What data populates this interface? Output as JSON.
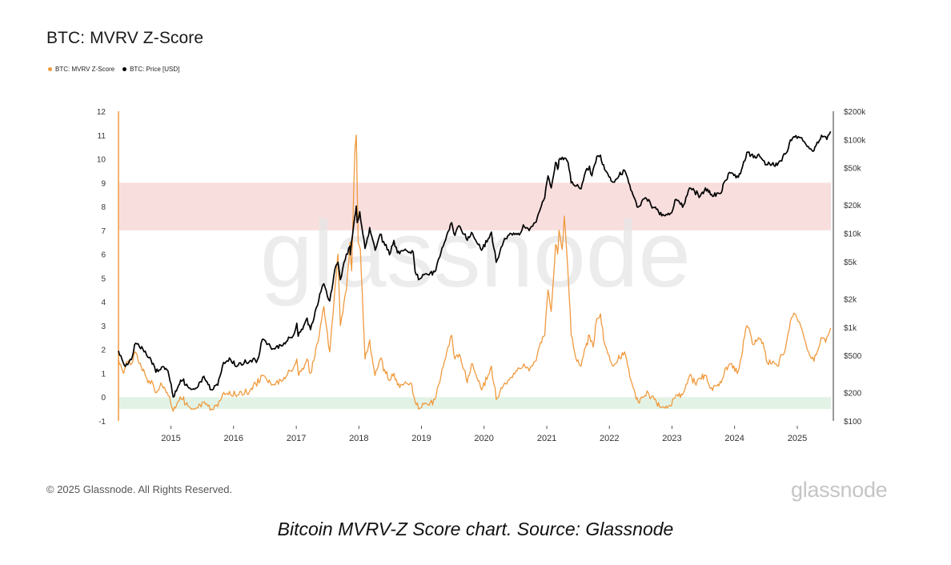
{
  "title": "BTC: MVRV Z-Score",
  "legend": [
    {
      "label": "BTC: MVRV Z-Score",
      "color": "#f09a3e"
    },
    {
      "label": "BTC: Price [USD]",
      "color": "#000000"
    }
  ],
  "watermark": "glassnode",
  "footer": {
    "copyright": "© 2025 Glassnode. All Rights Reserved.",
    "logo": "glassnode"
  },
  "caption": "Bitcoin MVRV-Z Score chart. Source: Glassnode",
  "chart_data": {
    "type": "line",
    "x_ticks": [
      "2015",
      "2016",
      "2017",
      "2018",
      "2019",
      "2020",
      "2021",
      "2022",
      "2023",
      "2024",
      "2025"
    ],
    "left_axis": {
      "ticks": [
        12,
        11,
        10,
        9,
        8,
        7,
        6,
        5,
        4,
        3,
        2,
        1,
        0,
        -1
      ],
      "ylim": [
        -1,
        12
      ]
    },
    "right_axis": {
      "scale": "log",
      "ylim": [
        100,
        200000
      ],
      "ticks": [
        {
          "value": 200000,
          "label": "$200k"
        },
        {
          "value": 100000,
          "label": "$100k"
        },
        {
          "value": 50000,
          "label": "$50k"
        },
        {
          "value": 20000,
          "label": "$20k"
        },
        {
          "value": 10000,
          "label": "$10k"
        },
        {
          "value": 5000,
          "label": "$5k"
        },
        {
          "value": 2000,
          "label": "$2k"
        },
        {
          "value": 1000,
          "label": "$1k"
        },
        {
          "value": 500,
          "label": "$500"
        },
        {
          "value": 200,
          "label": "$200"
        },
        {
          "value": 100,
          "label": "$100"
        }
      ]
    },
    "bands": [
      {
        "from": 7,
        "to": 9,
        "color": "#f9dede"
      },
      {
        "from": -0.5,
        "to": 0,
        "color": "#e2f3e6"
      }
    ],
    "grid": false,
    "legend_position": "top-left",
    "series": [
      {
        "name": "BTC: MVRV Z-Score",
        "axis": "left",
        "color": "#f09a3e",
        "points": [
          [
            "2014-03-01",
            1.6
          ],
          [
            "2014-04-01",
            1.0
          ],
          [
            "2014-04-20",
            1.5
          ],
          [
            "2014-05-15",
            1.4
          ],
          [
            "2014-06-05",
            1.9
          ],
          [
            "2014-07-01",
            1.4
          ],
          [
            "2014-08-01",
            1.0
          ],
          [
            "2014-08-20",
            0.6
          ],
          [
            "2014-09-10",
            0.7
          ],
          [
            "2014-10-01",
            0.2
          ],
          [
            "2014-11-10",
            0.5
          ],
          [
            "2014-12-10",
            0.2
          ],
          [
            "2015-01-14",
            -0.6
          ],
          [
            "2015-02-10",
            -0.2
          ],
          [
            "2015-03-10",
            -0.1
          ],
          [
            "2015-04-15",
            -0.4
          ],
          [
            "2015-06-01",
            -0.45
          ],
          [
            "2015-07-15",
            -0.2
          ],
          [
            "2015-08-25",
            -0.5
          ],
          [
            "2015-10-01",
            -0.4
          ],
          [
            "2015-11-05",
            0.2
          ],
          [
            "2015-12-15",
            0.1
          ],
          [
            "2016-02-01",
            0.1
          ],
          [
            "2016-04-01",
            0.2
          ],
          [
            "2016-06-17",
            0.9
          ],
          [
            "2016-07-15",
            0.7
          ],
          [
            "2016-08-10",
            0.5
          ],
          [
            "2016-10-15",
            0.7
          ],
          [
            "2016-12-20",
            1.3
          ],
          [
            "2017-01-04",
            1.6
          ],
          [
            "2017-01-15",
            0.9
          ],
          [
            "2017-03-05",
            1.6
          ],
          [
            "2017-03-25",
            1.0
          ],
          [
            "2017-05-15",
            2.6
          ],
          [
            "2017-06-11",
            3.8
          ],
          [
            "2017-07-15",
            1.9
          ],
          [
            "2017-08-15",
            4.6
          ],
          [
            "2017-09-01",
            6.0
          ],
          [
            "2017-09-15",
            3.0
          ],
          [
            "2017-10-20",
            4.5
          ],
          [
            "2017-11-10",
            6.5
          ],
          [
            "2017-11-20",
            5.3
          ],
          [
            "2017-12-08",
            10.2
          ],
          [
            "2017-12-17",
            11.0
          ],
          [
            "2017-12-28",
            6.5
          ],
          [
            "2018-01-10",
            6.2
          ],
          [
            "2018-01-20",
            4.5
          ],
          [
            "2018-02-06",
            1.6
          ],
          [
            "2018-03-05",
            2.4
          ],
          [
            "2018-04-05",
            0.9
          ],
          [
            "2018-05-05",
            1.6
          ],
          [
            "2018-06-25",
            0.7
          ],
          [
            "2018-07-25",
            1.0
          ],
          [
            "2018-08-15",
            0.5
          ],
          [
            "2018-09-15",
            0.5
          ],
          [
            "2018-11-01",
            0.6
          ],
          [
            "2018-11-25",
            -0.2
          ],
          [
            "2018-12-15",
            -0.5
          ],
          [
            "2019-01-15",
            -0.3
          ],
          [
            "2019-02-15",
            -0.35
          ],
          [
            "2019-03-20",
            -0.1
          ],
          [
            "2019-04-10",
            0.5
          ],
          [
            "2019-05-15",
            1.5
          ],
          [
            "2019-06-26",
            2.6
          ],
          [
            "2019-07-15",
            1.6
          ],
          [
            "2019-08-10",
            1.8
          ],
          [
            "2019-09-25",
            0.6
          ],
          [
            "2019-10-26",
            1.4
          ],
          [
            "2019-12-17",
            0.3
          ],
          [
            "2020-02-13",
            1.3
          ],
          [
            "2020-03-12",
            -0.1
          ],
          [
            "2020-04-30",
            0.6
          ],
          [
            "2020-06-01",
            0.8
          ],
          [
            "2020-07-25",
            1.2
          ],
          [
            "2020-08-20",
            1.4
          ],
          [
            "2020-09-20",
            1.1
          ],
          [
            "2020-10-25",
            1.5
          ],
          [
            "2020-11-25",
            2.3
          ],
          [
            "2020-12-20",
            2.6
          ],
          [
            "2021-01-08",
            4.5
          ],
          [
            "2021-01-27",
            3.6
          ],
          [
            "2021-02-21",
            6.4
          ],
          [
            "2021-03-05",
            6.0
          ],
          [
            "2021-03-13",
            7.0
          ],
          [
            "2021-04-01",
            6.2
          ],
          [
            "2021-04-13",
            7.6
          ],
          [
            "2021-05-05",
            5.2
          ],
          [
            "2021-05-23",
            2.6
          ],
          [
            "2021-06-25",
            1.5
          ],
          [
            "2021-07-20",
            1.3
          ],
          [
            "2021-08-15",
            2.1
          ],
          [
            "2021-09-07",
            2.6
          ],
          [
            "2021-09-28",
            2.1
          ],
          [
            "2021-10-20",
            3.3
          ],
          [
            "2021-11-10",
            3.5
          ],
          [
            "2021-12-05",
            2.2
          ],
          [
            "2022-01-24",
            1.3
          ],
          [
            "2022-03-30",
            1.9
          ],
          [
            "2022-05-12",
            0.6
          ],
          [
            "2022-06-18",
            -0.2
          ],
          [
            "2022-07-20",
            0.0
          ],
          [
            "2022-08-15",
            0.2
          ],
          [
            "2022-09-20",
            -0.1
          ],
          [
            "2022-11-09",
            -0.4
          ],
          [
            "2022-12-30",
            -0.35
          ],
          [
            "2023-01-25",
            0.1
          ],
          [
            "2023-03-10",
            0.2
          ],
          [
            "2023-04-14",
            0.9
          ],
          [
            "2023-05-15",
            0.6
          ],
          [
            "2023-06-15",
            0.8
          ],
          [
            "2023-07-15",
            0.9
          ],
          [
            "2023-08-20",
            0.4
          ],
          [
            "2023-10-15",
            0.6
          ],
          [
            "2023-11-01",
            1.0
          ],
          [
            "2023-12-08",
            1.4
          ],
          [
            "2024-01-23",
            1.1
          ],
          [
            "2024-02-28",
            2.5
          ],
          [
            "2024-03-13",
            3.0
          ],
          [
            "2024-04-20",
            2.2
          ],
          [
            "2024-05-20",
            2.5
          ],
          [
            "2024-06-15",
            2.3
          ],
          [
            "2024-07-05",
            1.5
          ],
          [
            "2024-08-05",
            1.4
          ],
          [
            "2024-09-06",
            1.3
          ],
          [
            "2024-10-25",
            2.1
          ],
          [
            "2024-11-22",
            3.2
          ],
          [
            "2024-12-17",
            3.5
          ],
          [
            "2025-01-20",
            3.0
          ],
          [
            "2025-02-28",
            2.0
          ],
          [
            "2025-04-08",
            1.5
          ],
          [
            "2025-05-20",
            2.5
          ],
          [
            "2025-06-15",
            2.3
          ],
          [
            "2025-07-14",
            2.9
          ]
        ]
      },
      {
        "name": "BTC: Price [USD]",
        "axis": "right",
        "color": "#000000",
        "points": [
          [
            "2014-03-01",
            560
          ],
          [
            "2014-04-10",
            380
          ],
          [
            "2014-05-15",
            450
          ],
          [
            "2014-06-03",
            650
          ],
          [
            "2014-07-15",
            620
          ],
          [
            "2014-08-18",
            480
          ],
          [
            "2014-09-20",
            410
          ],
          [
            "2014-10-05",
            330
          ],
          [
            "2014-11-15",
            380
          ],
          [
            "2014-12-15",
            340
          ],
          [
            "2015-01-14",
            180
          ],
          [
            "2015-02-15",
            240
          ],
          [
            "2015-03-10",
            270
          ],
          [
            "2015-04-15",
            225
          ],
          [
            "2015-06-01",
            225
          ],
          [
            "2015-07-12",
            300
          ],
          [
            "2015-08-24",
            215
          ],
          [
            "2015-10-01",
            240
          ],
          [
            "2015-11-04",
            420
          ],
          [
            "2015-12-15",
            450
          ],
          [
            "2016-01-15",
            380
          ],
          [
            "2016-03-15",
            420
          ],
          [
            "2016-05-20",
            450
          ],
          [
            "2016-06-17",
            740
          ],
          [
            "2016-07-20",
            660
          ],
          [
            "2016-08-10",
            580
          ],
          [
            "2016-10-15",
            640
          ],
          [
            "2016-12-20",
            850
          ],
          [
            "2017-01-04",
            1100
          ],
          [
            "2017-01-12",
            800
          ],
          [
            "2017-03-05",
            1250
          ],
          [
            "2017-03-25",
            940
          ],
          [
            "2017-05-25",
            2400
          ],
          [
            "2017-06-11",
            2900
          ],
          [
            "2017-07-15",
            1900
          ],
          [
            "2017-08-15",
            4200
          ],
          [
            "2017-09-01",
            4900
          ],
          [
            "2017-09-15",
            3200
          ],
          [
            "2017-10-20",
            6000
          ],
          [
            "2017-11-10",
            7300
          ],
          [
            "2017-11-12",
            5900
          ],
          [
            "2017-12-08",
            15000
          ],
          [
            "2017-12-17",
            19500
          ],
          [
            "2017-12-22",
            13000
          ],
          [
            "2018-01-06",
            17000
          ],
          [
            "2018-02-06",
            6900
          ],
          [
            "2018-03-05",
            11500
          ],
          [
            "2018-04-06",
            6600
          ],
          [
            "2018-05-05",
            9800
          ],
          [
            "2018-06-29",
            5900
          ],
          [
            "2018-07-24",
            8400
          ],
          [
            "2018-08-14",
            6200
          ],
          [
            "2018-09-15",
            6500
          ],
          [
            "2018-11-14",
            6300
          ],
          [
            "2018-11-25",
            3900
          ],
          [
            "2018-12-15",
            3200
          ],
          [
            "2019-01-15",
            3600
          ],
          [
            "2019-02-15",
            3600
          ],
          [
            "2019-03-25",
            4000
          ],
          [
            "2019-04-10",
            5300
          ],
          [
            "2019-05-15",
            8000
          ],
          [
            "2019-06-26",
            13000
          ],
          [
            "2019-07-15",
            9500
          ],
          [
            "2019-08-06",
            12000
          ],
          [
            "2019-09-25",
            8400
          ],
          [
            "2019-10-26",
            9900
          ],
          [
            "2019-12-17",
            6600
          ],
          [
            "2020-02-13",
            10300
          ],
          [
            "2020-03-12",
            4900
          ],
          [
            "2020-04-30",
            8800
          ],
          [
            "2020-06-01",
            10000
          ],
          [
            "2020-07-25",
            9600
          ],
          [
            "2020-08-17",
            12300
          ],
          [
            "2020-09-20",
            10700
          ],
          [
            "2020-10-25",
            13000
          ],
          [
            "2020-11-30",
            19500
          ],
          [
            "2020-12-20",
            24000
          ],
          [
            "2021-01-08",
            41000
          ],
          [
            "2021-01-27",
            30500
          ],
          [
            "2021-02-21",
            57000
          ],
          [
            "2021-03-05",
            48000
          ],
          [
            "2021-03-13",
            61000
          ],
          [
            "2021-04-14",
            63500
          ],
          [
            "2021-05-05",
            57000
          ],
          [
            "2021-05-23",
            34500
          ],
          [
            "2021-06-22",
            32000
          ],
          [
            "2021-07-20",
            29800
          ],
          [
            "2021-08-22",
            49000
          ],
          [
            "2021-09-07",
            52000
          ],
          [
            "2021-09-21",
            41000
          ],
          [
            "2021-10-20",
            66000
          ],
          [
            "2021-11-10",
            68000
          ],
          [
            "2021-12-04",
            48000
          ],
          [
            "2022-01-24",
            35000
          ],
          [
            "2022-03-30",
            47000
          ],
          [
            "2022-05-12",
            28000
          ],
          [
            "2022-06-18",
            19000
          ],
          [
            "2022-07-30",
            24000
          ],
          [
            "2022-09-20",
            18800
          ],
          [
            "2022-11-09",
            15900
          ],
          [
            "2022-12-30",
            16500
          ],
          [
            "2023-01-25",
            23000
          ],
          [
            "2023-03-10",
            20000
          ],
          [
            "2023-04-14",
            30500
          ],
          [
            "2023-06-15",
            25000
          ],
          [
            "2023-07-15",
            30500
          ],
          [
            "2023-08-20",
            26000
          ],
          [
            "2023-10-15",
            27000
          ],
          [
            "2023-11-01",
            35000
          ],
          [
            "2023-12-08",
            44000
          ],
          [
            "2024-01-23",
            39500
          ],
          [
            "2024-03-13",
            73000
          ],
          [
            "2024-04-20",
            64000
          ],
          [
            "2024-05-20",
            70000
          ],
          [
            "2024-07-05",
            54000
          ],
          [
            "2024-08-05",
            54000
          ],
          [
            "2024-09-06",
            53000
          ],
          [
            "2024-10-29",
            72000
          ],
          [
            "2024-11-22",
            99000
          ],
          [
            "2024-12-17",
            106000
          ],
          [
            "2025-01-21",
            105000
          ],
          [
            "2025-02-28",
            84000
          ],
          [
            "2025-04-08",
            76000
          ],
          [
            "2025-05-22",
            111000
          ],
          [
            "2025-06-22",
            100000
          ],
          [
            "2025-07-14",
            122000
          ]
        ]
      }
    ]
  }
}
